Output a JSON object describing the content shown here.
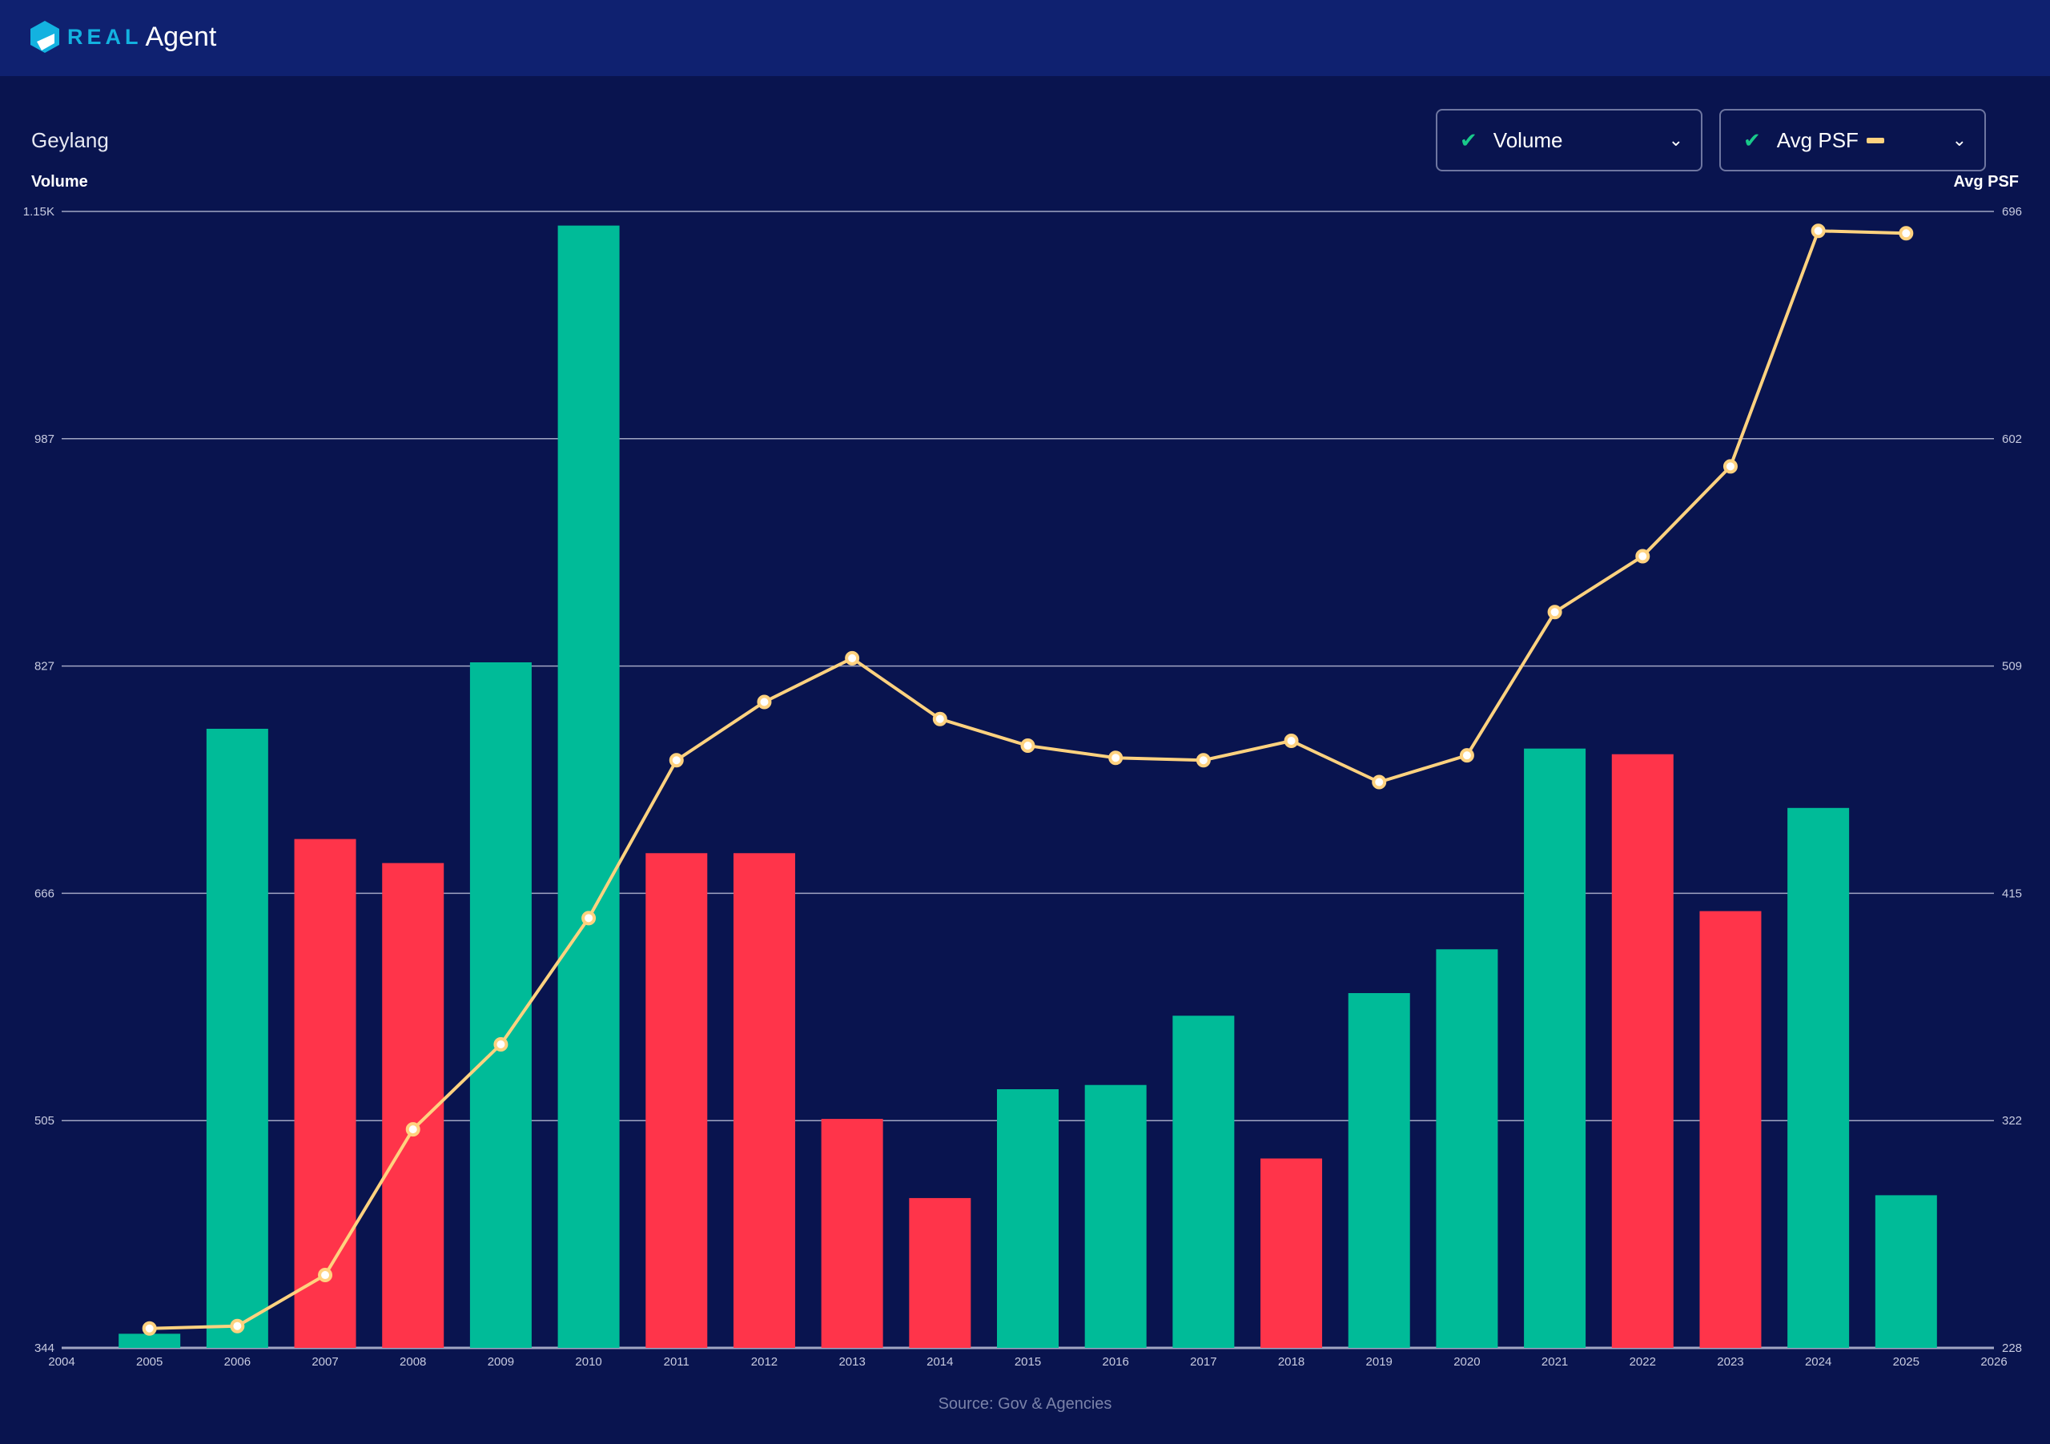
{
  "header": {
    "logo_real": "REAL",
    "logo_agent": "Agent"
  },
  "area_title": "Geylang",
  "dropdowns": [
    {
      "label": "Volume",
      "checked": true
    },
    {
      "label": "Avg PSF",
      "checked": true
    }
  ],
  "source": "Source: Gov & Agencies",
  "colors": {
    "up": "#00bb98",
    "down": "#ff344a",
    "line": "#ffd27f",
    "grid": "#c8cbe0"
  },
  "chart_data": {
    "type": "bar+line",
    "left_axis_title": "Volume",
    "right_axis_title": "Avg PSF",
    "x_ticks": [
      "2004",
      "2005",
      "2006",
      "2007",
      "2008",
      "2009",
      "2010",
      "2011",
      "2012",
      "2013",
      "2014",
      "2015",
      "2016",
      "2017",
      "2018",
      "2019",
      "2020",
      "2021",
      "2022",
      "2023",
      "2024",
      "2025",
      "2026"
    ],
    "x_range": [
      2004,
      2026
    ],
    "left_ticks": [
      "344",
      "505",
      "666",
      "827",
      "987",
      "1.15K"
    ],
    "left_range": [
      344,
      1148
    ],
    "right_ticks": [
      "228",
      "322",
      "415",
      "509",
      "602",
      "696"
    ],
    "right_range": [
      228,
      696
    ],
    "grid": true,
    "years": [
      2005,
      2006,
      2007,
      2008,
      2009,
      2010,
      2011,
      2012,
      2013,
      2014,
      2015,
      2016,
      2017,
      2018,
      2019,
      2020,
      2021,
      2022,
      2023,
      2024,
      2025
    ],
    "series": [
      {
        "name": "Volume",
        "type": "bar",
        "axis": "left",
        "values": [
          354,
          782,
          704,
          687,
          829,
          1138,
          694,
          694,
          506,
          450,
          527,
          530,
          579,
          478,
          595,
          626,
          768,
          764,
          653,
          726,
          452
        ],
        "trend": [
          "up",
          "up",
          "down",
          "down",
          "up",
          "up",
          "down",
          "down",
          "down",
          "down",
          "up",
          "up",
          "up",
          "down",
          "up",
          "up",
          "up",
          "down",
          "down",
          "up",
          "up"
        ]
      },
      {
        "name": "Avg PSF",
        "type": "line",
        "axis": "right",
        "values": [
          236,
          237,
          258,
          318,
          353,
          405,
          470,
          494,
          512,
          487,
          476,
          471,
          470,
          478,
          461,
          472,
          531,
          554,
          591,
          688,
          687
        ]
      }
    ]
  }
}
